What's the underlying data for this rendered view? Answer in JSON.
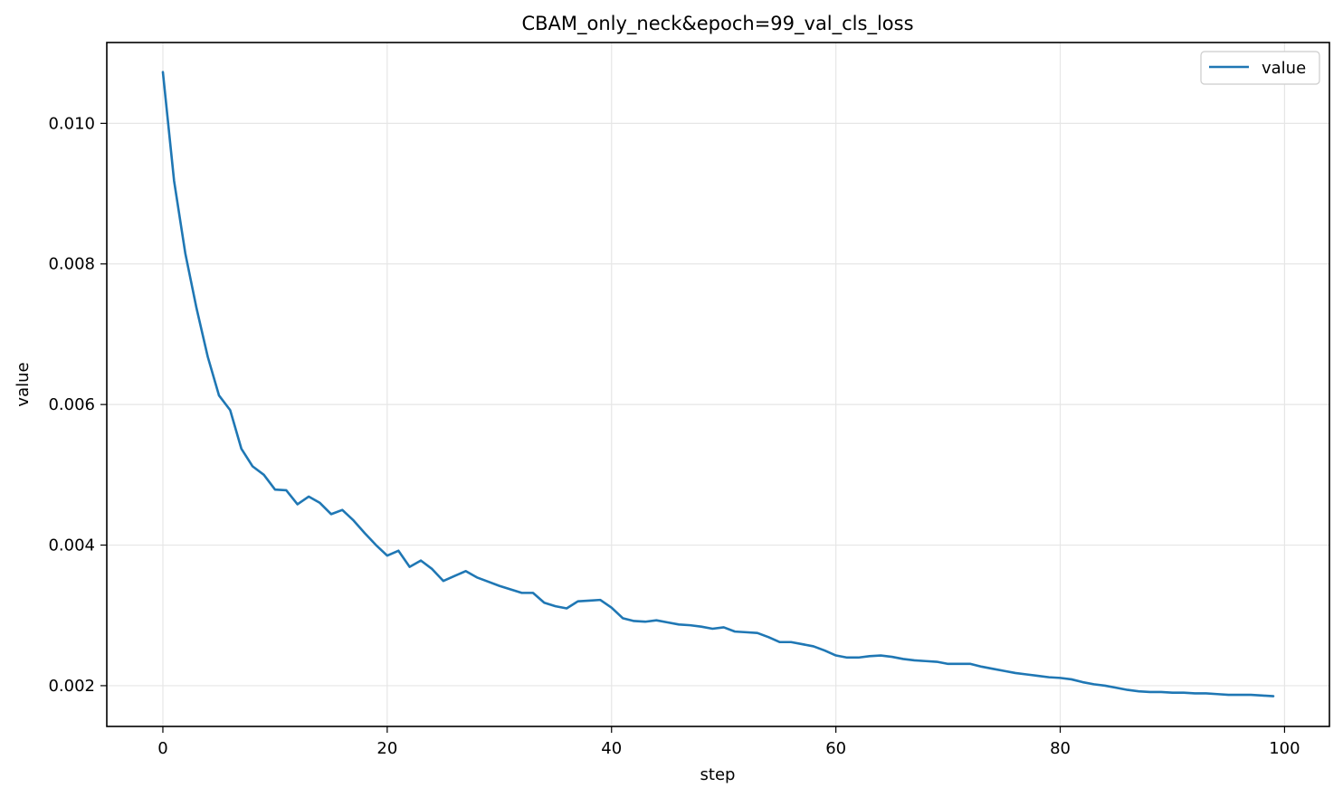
{
  "chart_data": {
    "type": "line",
    "title": "CBAM_only_neck&epoch=99_val_cls_loss",
    "xlabel": "step",
    "ylabel": "value",
    "xlim": [
      -5,
      104
    ],
    "ylim": [
      0.00142,
      0.01115
    ],
    "xticks": [
      0,
      20,
      40,
      60,
      80,
      100
    ],
    "xtick_labels": [
      "0",
      "20",
      "40",
      "60",
      "80",
      "100"
    ],
    "yticks": [
      0.002,
      0.004,
      0.006,
      0.008,
      0.01
    ],
    "ytick_labels": [
      "0.002",
      "0.004",
      "0.006",
      "0.008",
      "0.010"
    ],
    "grid": true,
    "legend_position": "top-right",
    "series": [
      {
        "name": "value",
        "color": "#1f77b4",
        "x": [
          0,
          1,
          2,
          3,
          4,
          5,
          6,
          7,
          8,
          9,
          10,
          11,
          12,
          13,
          14,
          15,
          16,
          17,
          18,
          19,
          20,
          21,
          22,
          23,
          24,
          25,
          26,
          27,
          28,
          29,
          30,
          31,
          32,
          33,
          34,
          35,
          36,
          37,
          38,
          39,
          40,
          41,
          42,
          43,
          44,
          45,
          46,
          47,
          48,
          49,
          50,
          51,
          52,
          53,
          54,
          55,
          56,
          57,
          58,
          59,
          60,
          61,
          62,
          63,
          64,
          65,
          66,
          67,
          68,
          69,
          70,
          71,
          72,
          73,
          74,
          75,
          76,
          77,
          78,
          79,
          80,
          81,
          82,
          83,
          84,
          85,
          86,
          87,
          88,
          89,
          90,
          91,
          92,
          93,
          94,
          95,
          96,
          97,
          98,
          99
        ],
        "values": [
          0.01073,
          0.00918,
          0.00815,
          0.00737,
          0.00668,
          0.00613,
          0.00592,
          0.00537,
          0.00512,
          0.005,
          0.00479,
          0.00478,
          0.00458,
          0.00469,
          0.0046,
          0.00444,
          0.0045,
          0.00435,
          0.00417,
          0.004,
          0.00385,
          0.00392,
          0.00369,
          0.00378,
          0.00366,
          0.00349,
          0.00356,
          0.00363,
          0.00354,
          0.00348,
          0.00342,
          0.00337,
          0.00332,
          0.00332,
          0.00318,
          0.00313,
          0.0031,
          0.0032,
          0.00321,
          0.00322,
          0.00311,
          0.00296,
          0.00292,
          0.00291,
          0.00293,
          0.0029,
          0.00287,
          0.00286,
          0.00284,
          0.00281,
          0.00283,
          0.00277,
          0.00276,
          0.00275,
          0.00269,
          0.00262,
          0.00262,
          0.00259,
          0.00256,
          0.0025,
          0.00243,
          0.0024,
          0.0024,
          0.00242,
          0.00243,
          0.00241,
          0.00238,
          0.00236,
          0.00235,
          0.00234,
          0.00231,
          0.00231,
          0.00231,
          0.00227,
          0.00224,
          0.00221,
          0.00218,
          0.00216,
          0.00214,
          0.00212,
          0.00211,
          0.00209,
          0.00205,
          0.00202,
          0.002,
          0.00197,
          0.00194,
          0.00192,
          0.00191,
          0.00191,
          0.0019,
          0.0019,
          0.00189,
          0.00189,
          0.00188,
          0.00187,
          0.00187,
          0.00187,
          0.00186,
          0.00185
        ]
      }
    ]
  }
}
